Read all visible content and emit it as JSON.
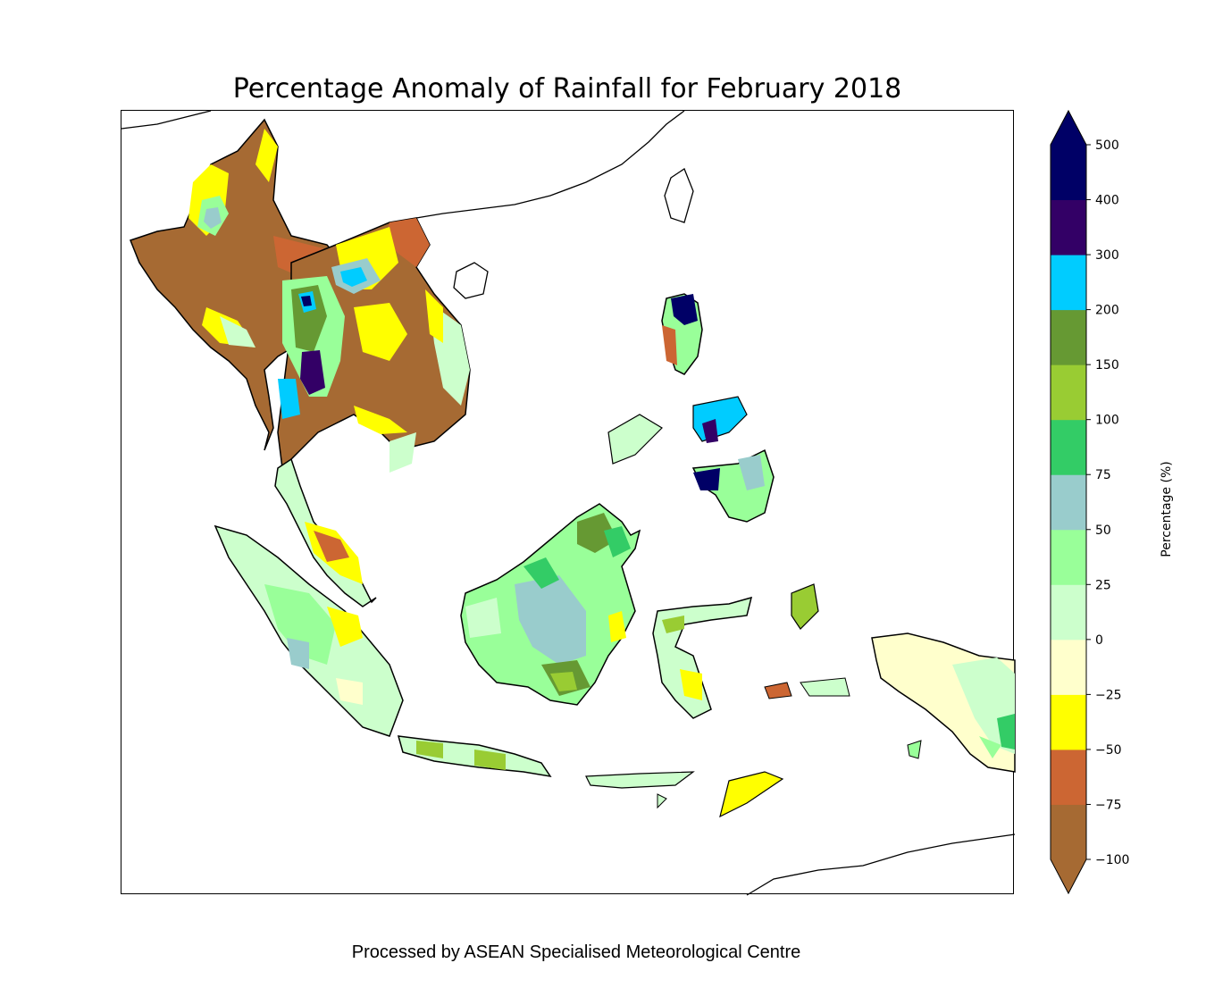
{
  "title": "Percentage Anomaly of Rainfall for February 2018",
  "footer": "Processed by ASEAN Specialised Meteorological Centre",
  "colorbar": {
    "label": "Percentage (%)",
    "ticks": [
      "−100",
      "−75",
      "−50",
      "−25",
      "0",
      "25",
      "50",
      "75",
      "100",
      "150",
      "200",
      "300",
      "400",
      "500"
    ],
    "bins": [
      {
        "range": [
          -100,
          -75
        ],
        "color": "#a66a33"
      },
      {
        "range": [
          -75,
          -50
        ],
        "color": "#cc6633"
      },
      {
        "range": [
          -50,
          -25
        ],
        "color": "#ffff00"
      },
      {
        "range": [
          -25,
          0
        ],
        "color": "#ffffcc"
      },
      {
        "range": [
          0,
          25
        ],
        "color": "#ccffcc"
      },
      {
        "range": [
          25,
          50
        ],
        "color": "#99ff99"
      },
      {
        "range": [
          50,
          75
        ],
        "color": "#99cccc"
      },
      {
        "range": [
          75,
          100
        ],
        "color": "#33cc66"
      },
      {
        "range": [
          100,
          150
        ],
        "color": "#99cc33"
      },
      {
        "range": [
          150,
          200
        ],
        "color": "#669933"
      },
      {
        "range": [
          200,
          300
        ],
        "color": "#00ccff"
      },
      {
        "range": [
          300,
          400
        ],
        "color": "#330066"
      },
      {
        "range": [
          400,
          500
        ],
        "color": "#000066"
      }
    ],
    "extend_low_color": "#a66a33",
    "extend_high_color": "#000066"
  },
  "map": {
    "region": "Southeast Asia",
    "colors": {
      "dry_extreme": "#a66a33",
      "dry": "#cc6633",
      "below": "#ffff00",
      "slightly_below": "#ffffcc",
      "near_normal": "#ccffcc",
      "above": "#99ff99",
      "wet": "#99cccc",
      "wetter": "#33cc66",
      "very_wet": "#99cc33",
      "very_wet2": "#669933",
      "extreme": "#00ccff",
      "extreme2": "#330066",
      "extreme3": "#000066"
    }
  }
}
